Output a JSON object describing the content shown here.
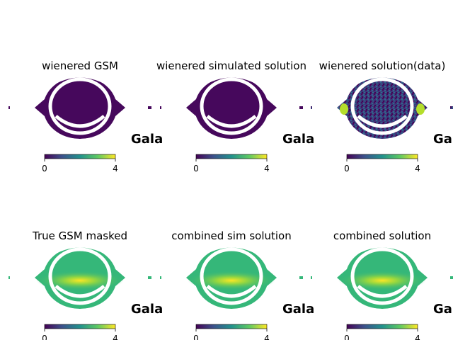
{
  "chart_data": [
    {
      "type": "heatmap",
      "title": "wienered GSM",
      "projection": "mollweide",
      "colorbar": {
        "colormap": "viridis",
        "range": [
          0,
          4
        ],
        "ticks": [
          "0",
          "4"
        ]
      },
      "map_style": "uniform-low",
      "annotation": "Gala"
    },
    {
      "type": "heatmap",
      "title": "wienered simulated solution",
      "projection": "mollweide",
      "colorbar": {
        "colormap": "viridis",
        "range": [
          0,
          4
        ],
        "ticks": [
          "0",
          "4"
        ]
      },
      "map_style": "uniform-low",
      "annotation": "Gala"
    },
    {
      "type": "heatmap",
      "title": "wienered solution(data)",
      "projection": "mollweide",
      "colorbar": {
        "colormap": "viridis",
        "range": [
          0,
          4
        ],
        "ticks": [
          "0",
          "4"
        ]
      },
      "map_style": "noisy",
      "annotation": "Gala"
    },
    {
      "type": "heatmap",
      "title": "True GSM masked",
      "projection": "mollweide",
      "colorbar": {
        "colormap": "viridis",
        "range": [
          0,
          4
        ],
        "ticks": [
          "0",
          "4"
        ]
      },
      "map_style": "galactic-plane",
      "annotation": "Gala"
    },
    {
      "type": "heatmap",
      "title": "combined sim solution",
      "projection": "mollweide",
      "colorbar": {
        "colormap": "viridis",
        "range": [
          0,
          4
        ],
        "ticks": [
          "0",
          "4"
        ]
      },
      "map_style": "galactic-plane",
      "annotation": "Gala"
    },
    {
      "type": "heatmap",
      "title": "combined solution",
      "projection": "mollweide",
      "colorbar": {
        "colormap": "viridis",
        "range": [
          0,
          4
        ],
        "ticks": [
          "0",
          "4"
        ]
      },
      "map_style": "galactic-plane",
      "annotation": "Gala"
    }
  ],
  "colors": {
    "viridis_low": "#440154",
    "viridis_mid": "#21918c",
    "viridis_high": "#fde725",
    "map_low": "#46085c",
    "map_plane_base": "#35b779",
    "map_noise": "#3b528b"
  }
}
